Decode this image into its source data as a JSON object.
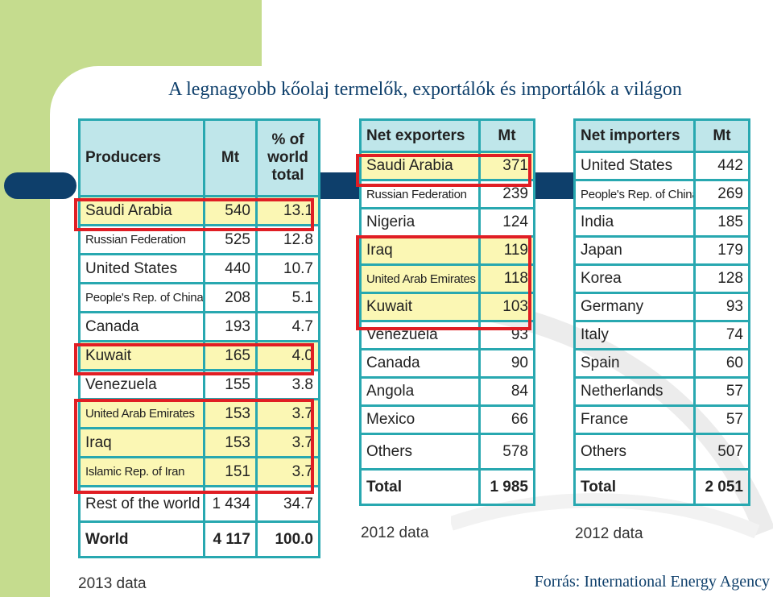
{
  "title": "A legnagyobb kőolaj termelők, exportálók és importálók a világon",
  "source": "Forrás: International Energy Agency",
  "producers": {
    "headers": [
      "Producers",
      "Mt",
      "% of world total"
    ],
    "rows": [
      {
        "name": "Saudi Arabia",
        "mt": "540",
        "pct": "13.1"
      },
      {
        "name": "Russian Federation",
        "mt": "525",
        "pct": "12.8"
      },
      {
        "name": "United States",
        "mt": "440",
        "pct": "10.7"
      },
      {
        "name": "People's Rep. of China",
        "mt": "208",
        "pct": "5.1"
      },
      {
        "name": "Canada",
        "mt": "193",
        "pct": "4.7"
      },
      {
        "name": "Kuwait",
        "mt": "165",
        "pct": "4.0"
      },
      {
        "name": "Venezuela",
        "mt": "155",
        "pct": "3.8"
      },
      {
        "name": "United Arab Emirates",
        "mt": "153",
        "pct": "3.7"
      },
      {
        "name": "Iraq",
        "mt": "153",
        "pct": "3.7"
      },
      {
        "name": "Islamic Rep. of Iran",
        "mt": "151",
        "pct": "3.7"
      }
    ],
    "rest": {
      "name": "Rest of the world",
      "mt": "1 434",
      "pct": "34.7"
    },
    "world": {
      "name": "World",
      "mt": "4 117",
      "pct": "100.0"
    },
    "note": "2013 data"
  },
  "exporters": {
    "headers": [
      "Net exporters",
      "Mt"
    ],
    "rows": [
      {
        "name": "Saudi Arabia",
        "mt": "371"
      },
      {
        "name": "Russian Federation",
        "mt": "239"
      },
      {
        "name": "Nigeria",
        "mt": "124"
      },
      {
        "name": "Iraq",
        "mt": "119"
      },
      {
        "name": "United Arab Emirates",
        "mt": "118"
      },
      {
        "name": "Kuwait",
        "mt": "103"
      },
      {
        "name": "Venezuela",
        "mt": "93"
      },
      {
        "name": "Canada",
        "mt": "90"
      },
      {
        "name": "Angola",
        "mt": "84"
      },
      {
        "name": "Mexico",
        "mt": "66"
      }
    ],
    "others": {
      "name": "Others",
      "mt": "578"
    },
    "total": {
      "name": "Total",
      "mt": "1 985"
    },
    "note": "2012 data"
  },
  "importers": {
    "headers": [
      "Net importers",
      "Mt"
    ],
    "rows": [
      {
        "name": "United States",
        "mt": "442"
      },
      {
        "name": "People's Rep. of China",
        "mt": "269"
      },
      {
        "name": "India",
        "mt": "185"
      },
      {
        "name": "Japan",
        "mt": "179"
      },
      {
        "name": "Korea",
        "mt": "128"
      },
      {
        "name": "Germany",
        "mt": "93"
      },
      {
        "name": "Italy",
        "mt": "74"
      },
      {
        "name": "Spain",
        "mt": "60"
      },
      {
        "name": "Netherlands",
        "mt": "57"
      },
      {
        "name": "France",
        "mt": "57"
      }
    ],
    "others": {
      "name": "Others",
      "mt": "507"
    },
    "total": {
      "name": "Total",
      "mt": "2 051"
    },
    "note": "2012 data"
  },
  "colors": {
    "highlight_border": "#e01e24",
    "highlight_fill": "#fbf7b4",
    "table_border": "#28a8b0",
    "header_fill": "#bfe6ea",
    "accent_green": "#c5dc8e",
    "accent_navy": "#0e3f6b"
  }
}
